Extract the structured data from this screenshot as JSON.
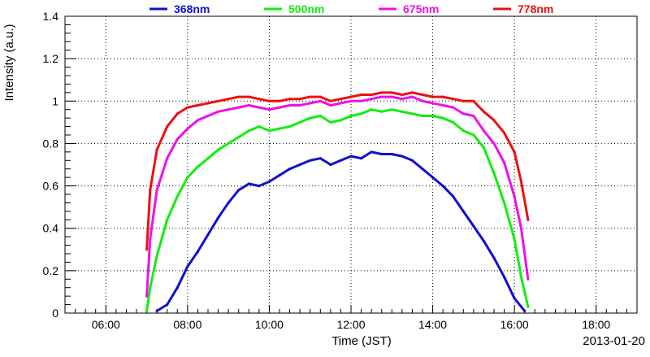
{
  "chart_data": {
    "type": "line",
    "title": "",
    "xlabel": "Time (JST)",
    "ylabel": "Intensity (a.u.)",
    "date_label": "2013-01-20",
    "xlim": [
      "05:00",
      "19:00"
    ],
    "ylim": [
      0,
      1.4
    ],
    "x_ticks": [
      "06:00",
      "08:00",
      "10:00",
      "12:00",
      "14:00",
      "16:00",
      "18:00"
    ],
    "y_ticks": [
      "0",
      "0.2",
      "0.4",
      "0.6",
      "0.8",
      "1",
      "1.2",
      "1.4"
    ],
    "grid": true,
    "legend_position": "top",
    "series": [
      {
        "name": "368nm",
        "color": "#1010d0",
        "x": [
          "07:15",
          "07:30",
          "07:45",
          "08:00",
          "08:15",
          "08:30",
          "08:45",
          "09:00",
          "09:15",
          "09:30",
          "09:45",
          "10:00",
          "10:15",
          "10:30",
          "10:45",
          "11:00",
          "11:15",
          "11:30",
          "11:45",
          "12:00",
          "12:15",
          "12:30",
          "12:45",
          "13:00",
          "13:15",
          "13:30",
          "13:45",
          "14:00",
          "14:15",
          "14:30",
          "14:45",
          "15:00",
          "15:15",
          "15:30",
          "15:45",
          "16:00",
          "16:15"
        ],
        "values": [
          0.01,
          0.04,
          0.12,
          0.22,
          0.29,
          0.37,
          0.45,
          0.52,
          0.58,
          0.61,
          0.6,
          0.62,
          0.65,
          0.68,
          0.7,
          0.72,
          0.73,
          0.7,
          0.72,
          0.74,
          0.73,
          0.76,
          0.75,
          0.75,
          0.74,
          0.72,
          0.68,
          0.64,
          0.6,
          0.55,
          0.48,
          0.41,
          0.34,
          0.26,
          0.17,
          0.07,
          0.01
        ]
      },
      {
        "name": "500nm",
        "color": "#10ee10",
        "x": [
          "07:00",
          "07:05",
          "07:15",
          "07:30",
          "07:45",
          "08:00",
          "08:15",
          "08:30",
          "08:45",
          "09:00",
          "09:15",
          "09:30",
          "09:45",
          "10:00",
          "10:15",
          "10:30",
          "10:45",
          "11:00",
          "11:15",
          "11:30",
          "11:45",
          "12:00",
          "12:15",
          "12:30",
          "12:45",
          "13:00",
          "13:15",
          "13:30",
          "13:45",
          "14:00",
          "14:15",
          "14:30",
          "14:45",
          "15:00",
          "15:15",
          "15:30",
          "15:45",
          "16:00",
          "16:10",
          "16:20"
        ],
        "values": [
          0.01,
          0.12,
          0.27,
          0.44,
          0.55,
          0.64,
          0.69,
          0.73,
          0.77,
          0.8,
          0.83,
          0.86,
          0.88,
          0.86,
          0.87,
          0.88,
          0.9,
          0.92,
          0.93,
          0.9,
          0.91,
          0.93,
          0.94,
          0.96,
          0.95,
          0.96,
          0.95,
          0.94,
          0.93,
          0.93,
          0.92,
          0.9,
          0.86,
          0.84,
          0.78,
          0.66,
          0.52,
          0.35,
          0.17,
          0.03
        ]
      },
      {
        "name": "675nm",
        "color": "#ee10ee",
        "x": [
          "07:00",
          "07:05",
          "07:15",
          "07:30",
          "07:45",
          "08:00",
          "08:15",
          "08:30",
          "08:45",
          "09:00",
          "09:15",
          "09:30",
          "09:45",
          "10:00",
          "10:15",
          "10:30",
          "10:45",
          "11:00",
          "11:15",
          "11:30",
          "11:45",
          "12:00",
          "12:15",
          "12:30",
          "12:45",
          "13:00",
          "13:15",
          "13:30",
          "13:45",
          "14:00",
          "14:15",
          "14:30",
          "14:45",
          "15:00",
          "15:15",
          "15:30",
          "15:45",
          "16:00",
          "16:10",
          "16:20"
        ],
        "values": [
          0.08,
          0.35,
          0.58,
          0.73,
          0.82,
          0.87,
          0.91,
          0.93,
          0.95,
          0.96,
          0.97,
          0.98,
          0.97,
          0.96,
          0.97,
          0.98,
          0.98,
          0.99,
          1.0,
          0.98,
          0.99,
          1.0,
          1.0,
          1.01,
          1.02,
          1.02,
          1.01,
          1.02,
          1.0,
          0.99,
          0.98,
          0.97,
          0.94,
          0.93,
          0.86,
          0.8,
          0.71,
          0.55,
          0.4,
          0.16
        ]
      },
      {
        "name": "778nm",
        "color": "#ee1010",
        "x": [
          "07:00",
          "07:05",
          "07:15",
          "07:30",
          "07:45",
          "08:00",
          "08:15",
          "08:30",
          "08:45",
          "09:00",
          "09:15",
          "09:30",
          "09:45",
          "10:00",
          "10:15",
          "10:30",
          "10:45",
          "11:00",
          "11:15",
          "11:30",
          "11:45",
          "12:00",
          "12:15",
          "12:30",
          "12:45",
          "13:00",
          "13:15",
          "13:30",
          "13:45",
          "14:00",
          "14:15",
          "14:30",
          "14:45",
          "15:00",
          "15:15",
          "15:30",
          "15:45",
          "16:00",
          "16:10",
          "16:20"
        ],
        "values": [
          0.3,
          0.58,
          0.77,
          0.88,
          0.94,
          0.97,
          0.98,
          0.99,
          1.0,
          1.01,
          1.02,
          1.02,
          1.01,
          1.0,
          1.0,
          1.01,
          1.01,
          1.02,
          1.02,
          1.0,
          1.01,
          1.02,
          1.03,
          1.03,
          1.04,
          1.04,
          1.03,
          1.04,
          1.03,
          1.02,
          1.02,
          1.01,
          1.0,
          1.0,
          0.95,
          0.91,
          0.85,
          0.76,
          0.62,
          0.44
        ]
      }
    ]
  }
}
